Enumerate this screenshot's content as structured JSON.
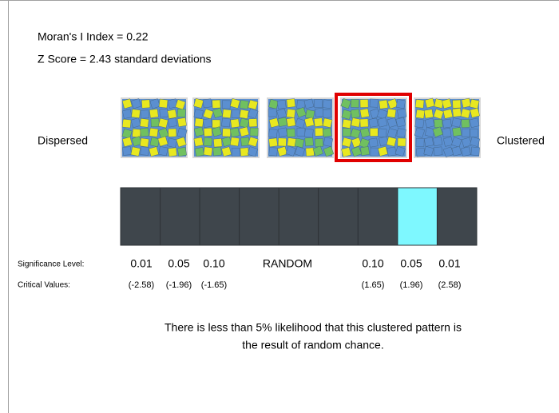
{
  "header": {
    "index_text": "Moran's I Index = 0.22",
    "zscore_text": "Z Score = 2.43 standard deviations"
  },
  "scale": {
    "left_label": "Dispersed",
    "right_label": "Clustered"
  },
  "significance": {
    "label": "Significance Level:",
    "levels": [
      "0.01",
      "0.05",
      "0.10",
      "RANDOM",
      "0.10",
      "0.05",
      "0.01"
    ]
  },
  "critical": {
    "label": "Critical Values:",
    "values": [
      "(-2.58)",
      "(-1.96)",
      "(-1.65)",
      "(1.65)",
      "(1.96)",
      "(2.58)"
    ]
  },
  "message": [
    "There is less than 5% likelihood that this clustered pattern is",
    "the result of random chance."
  ]
}
